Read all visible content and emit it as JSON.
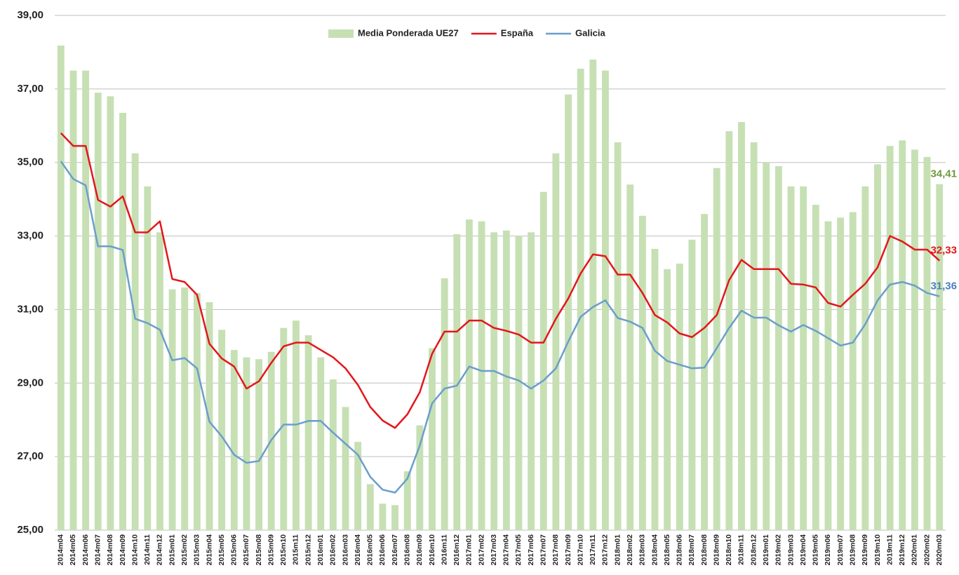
{
  "chart_data": {
    "type": "bar_line",
    "categories": [
      "2014m04",
      "2014m05",
      "2014m06",
      "2014m07",
      "2014m08",
      "2014m09",
      "2014m10",
      "2014m11",
      "2014m12",
      "2015m01",
      "2015m02",
      "2015m03",
      "2015m04",
      "2015m05",
      "2015m06",
      "2015m07",
      "2015m08",
      "2015m09",
      "2015m10",
      "2015m11",
      "2015m12",
      "2016m01",
      "2016m02",
      "2016m03",
      "2016m04",
      "2016m05",
      "2016m06",
      "2016m07",
      "2016m08",
      "2016m09",
      "2016m10",
      "2016m11",
      "2016m12",
      "2017m01",
      "2017m02",
      "2017m03",
      "2017m04",
      "2017m05",
      "2017m06",
      "2017m07",
      "2017m08",
      "2017m09",
      "2017m10",
      "2017m11",
      "2017m12",
      "2018m01",
      "2018m02",
      "2018m03",
      "2018m04",
      "2018m05",
      "2018m06",
      "2018m07",
      "2018m08",
      "2018m09",
      "2018m10",
      "2018m11",
      "2018m12",
      "2019m01",
      "2019m02",
      "2019m03",
      "2019m04",
      "2019m05",
      "2019m06",
      "2019m07",
      "2019m08",
      "2019m09",
      "2019m10",
      "2019m11",
      "2019m12",
      "2020m01",
      "2020m02",
      "2020m03"
    ],
    "series": [
      {
        "name": "Media Ponderada UE27",
        "type": "bar",
        "color": "#c6e0b4",
        "label_color": "#6f9a3c",
        "values": [
          38.18,
          37.5,
          37.5,
          36.9,
          36.8,
          36.35,
          35.25,
          34.35,
          33.1,
          31.55,
          31.6,
          31.45,
          31.2,
          30.45,
          29.9,
          29.7,
          29.65,
          29.85,
          30.5,
          30.7,
          30.3,
          29.7,
          29.1,
          28.35,
          27.4,
          26.25,
          25.72,
          25.68,
          26.6,
          27.85,
          29.95,
          31.85,
          33.05,
          33.45,
          33.4,
          33.1,
          33.15,
          33.0,
          33.1,
          34.2,
          35.25,
          36.85,
          37.55,
          37.8,
          37.5,
          35.55,
          34.4,
          33.55,
          32.65,
          32.1,
          32.25,
          32.9,
          33.6,
          34.85,
          35.85,
          36.1,
          35.55,
          35.0,
          34.9,
          34.35,
          34.35,
          33.85,
          33.4,
          33.5,
          33.65,
          34.35,
          34.95,
          35.45,
          35.6,
          35.35,
          35.15,
          34.41
        ],
        "value_labels": [
          null,
          null,
          null,
          null,
          null,
          null,
          null,
          null,
          null,
          null,
          null,
          null,
          null,
          null,
          null,
          null,
          null,
          null,
          null,
          null,
          null,
          null,
          null,
          null,
          null,
          null,
          null,
          null,
          null,
          null,
          null,
          null,
          null,
          null,
          null,
          null,
          null,
          null,
          null,
          null,
          null,
          null,
          null,
          null,
          null,
          null,
          null,
          null,
          null,
          null,
          null,
          null,
          null,
          null,
          null,
          null,
          null,
          null,
          null,
          null,
          null,
          null,
          null,
          null,
          null,
          null,
          null,
          null,
          null,
          null,
          null,
          "34,41"
        ]
      },
      {
        "name": "España",
        "type": "line",
        "color": "#e3171b",
        "label_color": "#e3171b",
        "values": [
          35.8,
          35.45,
          35.45,
          33.98,
          33.8,
          34.08,
          33.1,
          33.1,
          33.4,
          31.83,
          31.75,
          31.4,
          30.07,
          29.67,
          29.45,
          28.85,
          29.05,
          29.55,
          30.0,
          30.1,
          30.1,
          29.9,
          29.7,
          29.4,
          28.95,
          28.35,
          27.98,
          27.78,
          28.15,
          28.75,
          29.8,
          30.4,
          30.4,
          30.7,
          30.7,
          30.5,
          30.42,
          30.32,
          30.1,
          30.1,
          30.75,
          31.3,
          31.98,
          32.5,
          32.45,
          31.95,
          31.95,
          31.45,
          30.85,
          30.65,
          30.35,
          30.25,
          30.5,
          30.85,
          31.8,
          32.35,
          32.1,
          32.1,
          32.1,
          31.7,
          31.68,
          31.6,
          31.18,
          31.08,
          31.4,
          31.7,
          32.15,
          33.0,
          32.85,
          32.63,
          32.63,
          32.33
        ],
        "value_labels": [
          null,
          null,
          null,
          null,
          null,
          null,
          null,
          null,
          null,
          null,
          null,
          null,
          null,
          null,
          null,
          null,
          null,
          null,
          null,
          null,
          null,
          null,
          null,
          null,
          null,
          null,
          null,
          null,
          null,
          null,
          null,
          null,
          null,
          null,
          null,
          null,
          null,
          null,
          null,
          null,
          null,
          null,
          null,
          null,
          null,
          null,
          null,
          null,
          null,
          null,
          null,
          null,
          null,
          null,
          null,
          null,
          null,
          null,
          null,
          null,
          null,
          null,
          null,
          null,
          null,
          null,
          null,
          null,
          null,
          null,
          null,
          "32,33"
        ]
      },
      {
        "name": "Galicia",
        "type": "line",
        "color": "#6b9ecb",
        "label_color": "#4a7fbf",
        "values": [
          35.03,
          34.55,
          34.38,
          32.72,
          32.72,
          32.62,
          30.75,
          30.63,
          30.45,
          29.62,
          29.68,
          29.4,
          27.95,
          27.55,
          27.05,
          26.83,
          26.88,
          27.45,
          27.87,
          27.87,
          27.97,
          27.97,
          27.65,
          27.35,
          27.05,
          26.45,
          26.1,
          26.02,
          26.4,
          27.3,
          28.45,
          28.85,
          28.93,
          29.45,
          29.33,
          29.33,
          29.18,
          29.07,
          28.85,
          29.07,
          29.4,
          30.13,
          30.8,
          31.07,
          31.25,
          30.77,
          30.67,
          30.5,
          29.88,
          29.6,
          29.5,
          29.4,
          29.42,
          29.95,
          30.5,
          30.97,
          30.78,
          30.78,
          30.57,
          30.4,
          30.58,
          30.42,
          30.22,
          30.02,
          30.1,
          30.6,
          31.25,
          31.68,
          31.75,
          31.65,
          31.45,
          31.36
        ],
        "value_labels": [
          null,
          null,
          null,
          null,
          null,
          null,
          null,
          null,
          null,
          null,
          null,
          null,
          null,
          null,
          null,
          null,
          null,
          null,
          null,
          null,
          null,
          null,
          null,
          null,
          null,
          null,
          null,
          null,
          null,
          null,
          null,
          null,
          null,
          null,
          null,
          null,
          null,
          null,
          null,
          null,
          null,
          null,
          null,
          null,
          null,
          null,
          null,
          null,
          null,
          null,
          null,
          null,
          null,
          null,
          null,
          null,
          null,
          null,
          null,
          null,
          null,
          null,
          null,
          null,
          null,
          null,
          null,
          null,
          null,
          null,
          null,
          "31,36"
        ]
      }
    ],
    "ylim": [
      25,
      39
    ],
    "yticks": [
      {
        "value": 25,
        "label": "25,00"
      },
      {
        "value": 27,
        "label": "27,00"
      },
      {
        "value": 29,
        "label": "29,00"
      },
      {
        "value": 31,
        "label": "31,00"
      },
      {
        "value": 33,
        "label": "33,00"
      },
      {
        "value": 35,
        "label": "35,00"
      },
      {
        "value": 37,
        "label": "37,00"
      },
      {
        "value": 39,
        "label": "39,00"
      }
    ],
    "grid": true,
    "legend": "top"
  }
}
